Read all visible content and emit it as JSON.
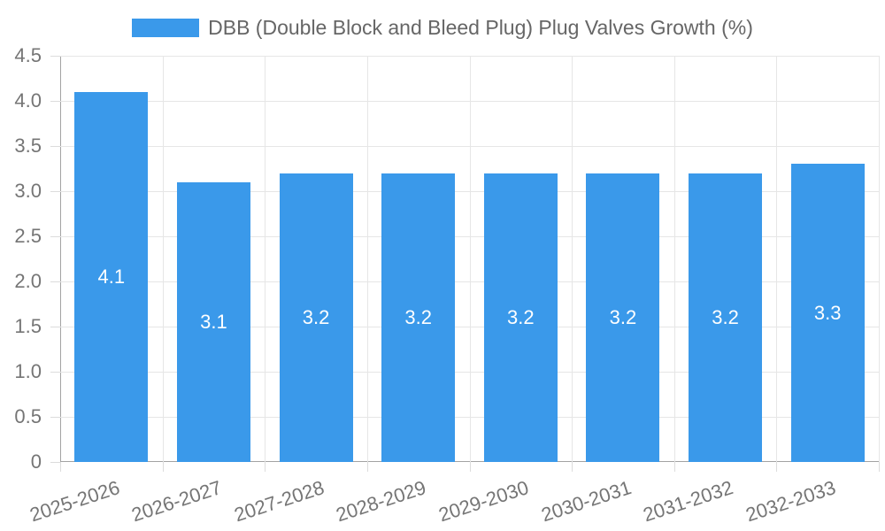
{
  "chart_data": {
    "type": "bar",
    "legend_label": "DBB (Double Block and Bleed Plug) Plug Valves Growth (%)",
    "legend_position": "top",
    "categories": [
      "2025-2026",
      "2026-2027",
      "2027-2028",
      "2028-2029",
      "2029-2030",
      "2030-2031",
      "2031-2032",
      "2032-2033"
    ],
    "values": [
      4.1,
      3.1,
      3.2,
      3.2,
      3.2,
      3.2,
      3.2,
      3.3
    ],
    "bar_value_labels": [
      "4.1",
      "3.1",
      "3.2",
      "3.2",
      "3.2",
      "3.2",
      "3.2",
      "3.3"
    ],
    "xlabel": "",
    "ylabel": "",
    "ylim": [
      0,
      4.5
    ],
    "y_tick_labels": [
      "0",
      "0.5",
      "1.0",
      "1.5",
      "2.0",
      "2.5",
      "3.0",
      "3.5",
      "4.0",
      "4.5"
    ],
    "grid": true,
    "x_label_rotation_deg": -18,
    "colors": {
      "bar": "#3a99ea",
      "bar_label": "#ffffff",
      "tick_text": "#757575",
      "legend_text": "#666666",
      "grid": "#e6e6e6",
      "tick_mark": "#dcdcdc",
      "axis_border": "#a3a3a3",
      "background": "#ffffff"
    }
  }
}
